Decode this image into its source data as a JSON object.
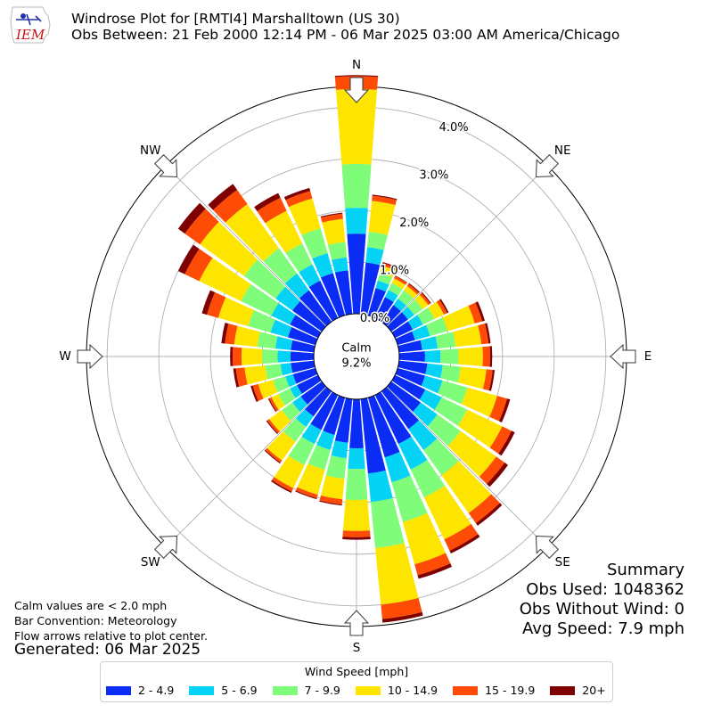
{
  "header": {
    "logo_text": "IEM",
    "title_line1": "Windrose Plot for [RMTI4] Marshalltown (US 30)",
    "title_line2": "Obs Between: 21 Feb 2000 12:14 PM - 06 Mar 2025 03:00 AM America/Chicago"
  },
  "notes": {
    "line1": "Calm values are < 2.0 mph",
    "line2": "Bar Convention: Meteorology",
    "line3": "Flow arrows relative to plot center.",
    "generated": "Generated: 06 Mar 2025"
  },
  "summary": {
    "title": "Summary",
    "obs_used": "Obs Used: 1048362",
    "obs_without_wind": "Obs Without Wind: 0",
    "avg_speed": "Avg Speed: 7.9 mph"
  },
  "legend": {
    "title": "Wind Speed [mph]",
    "items": [
      {
        "label": "2 - 4.9",
        "color": "#0a2cf4"
      },
      {
        "label": "5 - 6.9",
        "color": "#05d3f5"
      },
      {
        "label": "7 - 9.9",
        "color": "#7efc7a"
      },
      {
        "label": "10 - 14.9",
        "color": "#fde500"
      },
      {
        "label": "15 - 19.9",
        "color": "#fe4b05"
      },
      {
        "label": "20+",
        "color": "#7f0000"
      }
    ]
  },
  "chart_data": {
    "type": "windrose",
    "calm_label": "Calm",
    "calm_value": "9.2%",
    "cardinal_labels": [
      "N",
      "NE",
      "E",
      "SE",
      "S",
      "SW",
      "W",
      "NW"
    ],
    "radial_ticks": [
      "0.0%",
      "1.0%",
      "2.0%",
      "3.0%",
      "4.0%"
    ],
    "radial_max": 4.4,
    "unit": "%",
    "bins": [
      "2 - 4.9",
      "5 - 6.9",
      "7 - 9.9",
      "10 - 14.9",
      "15 - 19.9",
      "20+"
    ],
    "directions": [
      0,
      10,
      20,
      30,
      40,
      50,
      60,
      70,
      80,
      90,
      100,
      110,
      120,
      130,
      140,
      150,
      160,
      170,
      180,
      190,
      200,
      210,
      220,
      230,
      240,
      250,
      260,
      270,
      280,
      290,
      300,
      310,
      320,
      330,
      340,
      350
    ],
    "values": [
      [
        1.55,
        2.05,
        2.9,
        4.35,
        4.6,
        4.62
      ],
      [
        1.0,
        1.3,
        1.6,
        2.2,
        2.3,
        2.32
      ],
      [
        0.55,
        0.7,
        0.85,
        1.0,
        1.05,
        1.07
      ],
      [
        0.45,
        0.6,
        0.75,
        0.85,
        0.9,
        0.91
      ],
      [
        0.4,
        0.55,
        0.75,
        0.85,
        0.9,
        0.92
      ],
      [
        0.4,
        0.55,
        0.75,
        0.88,
        0.93,
        0.95
      ],
      [
        0.38,
        0.6,
        0.85,
        1.05,
        1.12,
        1.15
      ],
      [
        0.35,
        0.65,
        1.0,
        1.55,
        1.7,
        1.75
      ],
      [
        0.45,
        0.75,
        1.1,
        1.6,
        1.74,
        1.78
      ],
      [
        0.5,
        0.8,
        1.15,
        1.62,
        1.76,
        1.8
      ],
      [
        0.55,
        0.85,
        1.2,
        1.7,
        1.82,
        1.86
      ],
      [
        0.55,
        0.9,
        1.4,
        2.0,
        2.2,
        2.26
      ],
      [
        0.65,
        1.0,
        1.55,
        2.3,
        2.5,
        2.57
      ],
      [
        0.7,
        1.1,
        1.65,
        2.5,
        2.7,
        2.78
      ],
      [
        0.9,
        1.4,
        2.0,
        2.9,
        3.14,
        3.2
      ],
      [
        1.05,
        1.6,
        2.2,
        3.1,
        3.34,
        3.4
      ],
      [
        1.2,
        1.7,
        2.5,
        3.35,
        3.57,
        3.64
      ],
      [
        1.45,
        2.0,
        2.9,
        4.0,
        4.28,
        4.35
      ],
      [
        0.95,
        1.35,
        1.95,
        2.55,
        2.67,
        2.72
      ],
      [
        0.85,
        1.15,
        1.55,
        1.95,
        2.05,
        2.07
      ],
      [
        0.75,
        1.05,
        1.45,
        1.95,
        2.02,
        2.04
      ],
      [
        0.75,
        1.05,
        1.5,
        2.0,
        2.07,
        2.1
      ],
      [
        0.6,
        0.85,
        1.2,
        1.65,
        1.7,
        1.72
      ],
      [
        0.5,
        0.7,
        0.95,
        1.25,
        1.3,
        1.32
      ],
      [
        0.45,
        0.6,
        0.85,
        1.0,
        1.05,
        1.07
      ],
      [
        0.45,
        0.6,
        0.85,
        1.15,
        1.26,
        1.3
      ],
      [
        0.45,
        0.65,
        0.95,
        1.35,
        1.52,
        1.57
      ],
      [
        0.45,
        0.7,
        1.0,
        1.4,
        1.57,
        1.62
      ],
      [
        0.45,
        0.75,
        1.1,
        1.55,
        1.73,
        1.8
      ],
      [
        0.55,
        0.9,
        1.35,
        1.95,
        2.18,
        2.28
      ],
      [
        0.6,
        1.0,
        1.65,
        2.55,
        2.86,
        3.0
      ],
      [
        0.7,
        1.1,
        1.85,
        2.9,
        3.26,
        3.42
      ],
      [
        0.75,
        1.15,
        1.75,
        2.8,
        3.14,
        3.28
      ],
      [
        0.8,
        1.15,
        1.6,
        2.3,
        2.58,
        2.68
      ],
      [
        0.85,
        1.25,
        1.75,
        2.35,
        2.5,
        2.56
      ],
      [
        0.85,
        1.1,
        1.4,
        1.85,
        1.95,
        1.97
      ]
    ]
  }
}
